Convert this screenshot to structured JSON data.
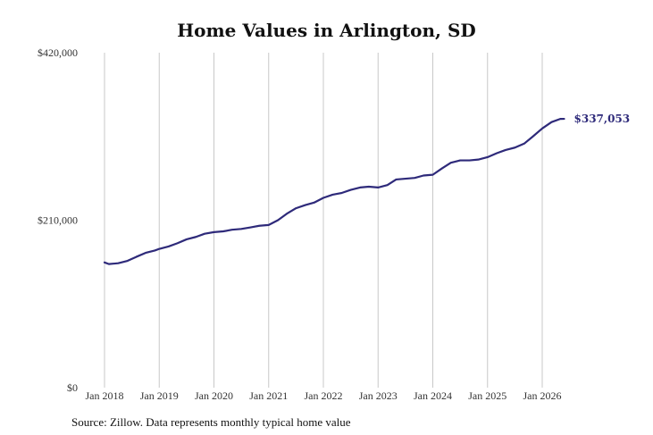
{
  "chart_data": {
    "type": "line",
    "title": "Home Values in Arlington, SD",
    "source": "Source: Zillow. Data represents monthly typical home value",
    "xlabel": "",
    "ylabel": "",
    "ylim": [
      0,
      420000
    ],
    "yticks": [
      "$420,000",
      "$210,000",
      "$0"
    ],
    "ytick_values": [
      420000,
      210000,
      0
    ],
    "xticks": [
      "Jan 2018",
      "Jan 2019",
      "Jan 2020",
      "Jan 2021",
      "Jan 2022",
      "Jan 2023",
      "Jan 2024",
      "Jan 2025",
      "Jan 2026"
    ],
    "x_start": 2018.0,
    "x_end": 2026.4,
    "grid": "vertical",
    "line_color": "#2e2a7a",
    "end_label": "$337,053",
    "series": [
      {
        "values": [
          [
            2018.0,
            157000
          ],
          [
            2018.08,
            155000
          ],
          [
            2018.25,
            156000
          ],
          [
            2018.42,
            159000
          ],
          [
            2018.58,
            164000
          ],
          [
            2018.75,
            169000
          ],
          [
            2018.92,
            172000
          ],
          [
            2019.0,
            174000
          ],
          [
            2019.17,
            177000
          ],
          [
            2019.33,
            181000
          ],
          [
            2019.5,
            186000
          ],
          [
            2019.67,
            189000
          ],
          [
            2019.83,
            193000
          ],
          [
            2020.0,
            195000
          ],
          [
            2020.17,
            196000
          ],
          [
            2020.33,
            198000
          ],
          [
            2020.5,
            199000
          ],
          [
            2020.67,
            201000
          ],
          [
            2020.83,
            203000
          ],
          [
            2021.0,
            204000
          ],
          [
            2021.17,
            210000
          ],
          [
            2021.33,
            218000
          ],
          [
            2021.5,
            225000
          ],
          [
            2021.67,
            229000
          ],
          [
            2021.83,
            232000
          ],
          [
            2022.0,
            238000
          ],
          [
            2022.17,
            242000
          ],
          [
            2022.33,
            244000
          ],
          [
            2022.5,
            248000
          ],
          [
            2022.67,
            251000
          ],
          [
            2022.83,
            252000
          ],
          [
            2023.0,
            251000
          ],
          [
            2023.17,
            254000
          ],
          [
            2023.33,
            261000
          ],
          [
            2023.5,
            262000
          ],
          [
            2023.67,
            263000
          ],
          [
            2023.83,
            266000
          ],
          [
            2024.0,
            267000
          ],
          [
            2024.17,
            275000
          ],
          [
            2024.33,
            282000
          ],
          [
            2024.5,
            285000
          ],
          [
            2024.67,
            285000
          ],
          [
            2024.83,
            286000
          ],
          [
            2025.0,
            289000
          ],
          [
            2025.17,
            294000
          ],
          [
            2025.33,
            298000
          ],
          [
            2025.5,
            301000
          ],
          [
            2025.67,
            306000
          ],
          [
            2025.83,
            315000
          ],
          [
            2026.0,
            325000
          ],
          [
            2026.17,
            333000
          ],
          [
            2026.33,
            337000
          ],
          [
            2026.4,
            337053
          ]
        ]
      }
    ]
  }
}
